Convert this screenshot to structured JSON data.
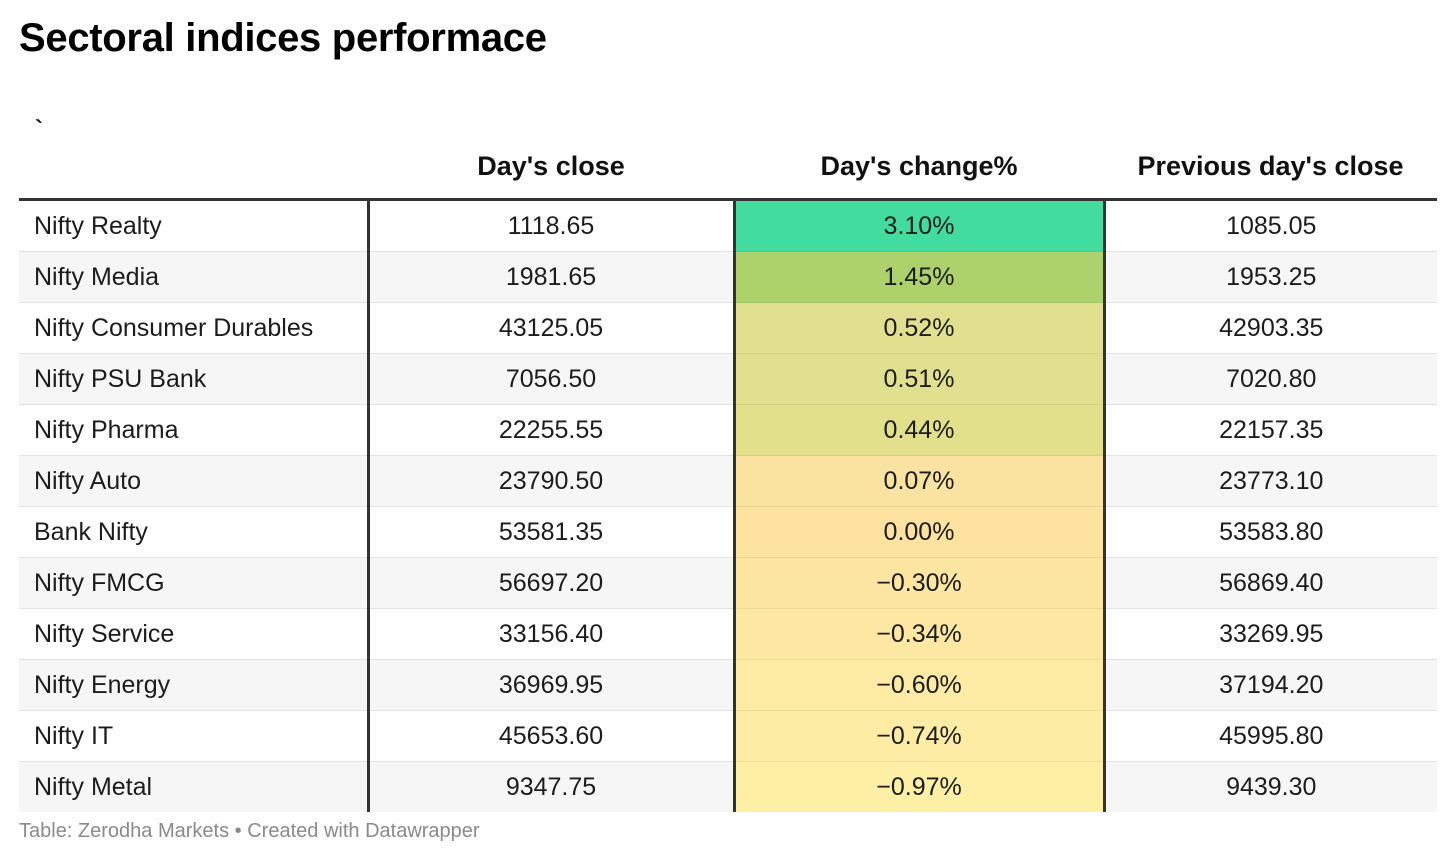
{
  "title": "Sectoral indices performace",
  "footer": {
    "source": "Table: Zerodha Markets",
    "separator": " • ",
    "credit": "Created with Datawrapper"
  },
  "chart_data": {
    "type": "table",
    "title": "Sectoral indices performace",
    "columns": [
      "`",
      "Day's close",
      "Day's change%",
      "Previous day's close"
    ],
    "rows": [
      {
        "name": "Nifty Realty",
        "close": "1118.65",
        "change": "3.10%",
        "prev": "1085.05",
        "color": "#42dc9e"
      },
      {
        "name": "Nifty Media",
        "close": "1981.65",
        "change": "1.45%",
        "prev": "1953.25",
        "color": "#add26c"
      },
      {
        "name": "Nifty Consumer Durables",
        "close": "43125.05",
        "change": "0.52%",
        "prev": "42903.35",
        "color": "#e1e08e"
      },
      {
        "name": "Nifty PSU Bank",
        "close": "7056.50",
        "change": "0.51%",
        "prev": "7020.80",
        "color": "#e1e08e"
      },
      {
        "name": "Nifty Pharma",
        "close": "22255.55",
        "change": "0.44%",
        "prev": "22157.35",
        "color": "#e3e08b"
      },
      {
        "name": "Nifty Auto",
        "close": "23790.50",
        "change": "0.07%",
        "prev": "23773.10",
        "color": "#fae2a1"
      },
      {
        "name": "Bank Nifty",
        "close": "53581.35",
        "change": "0.00%",
        "prev": "53583.80",
        "color": "#fde39f"
      },
      {
        "name": "Nifty FMCG",
        "close": "56697.20",
        "change": "−0.30%",
        "prev": "56869.40",
        "color": "#fde6a2"
      },
      {
        "name": "Nifty Service",
        "close": "33156.40",
        "change": "−0.34%",
        "prev": "33269.95",
        "color": "#fde8a3"
      },
      {
        "name": "Nifty Energy",
        "close": "36969.95",
        "change": "−0.60%",
        "prev": "37194.20",
        "color": "#fdeba3"
      },
      {
        "name": "Nifty IT",
        "close": "45653.60",
        "change": "−0.74%",
        "prev": "45995.80",
        "color": "#fdeda4"
      },
      {
        "name": "Nifty Metal",
        "close": "9347.75",
        "change": "−0.97%",
        "prev": "9439.30",
        "color": "#fdf0a5"
      }
    ]
  }
}
